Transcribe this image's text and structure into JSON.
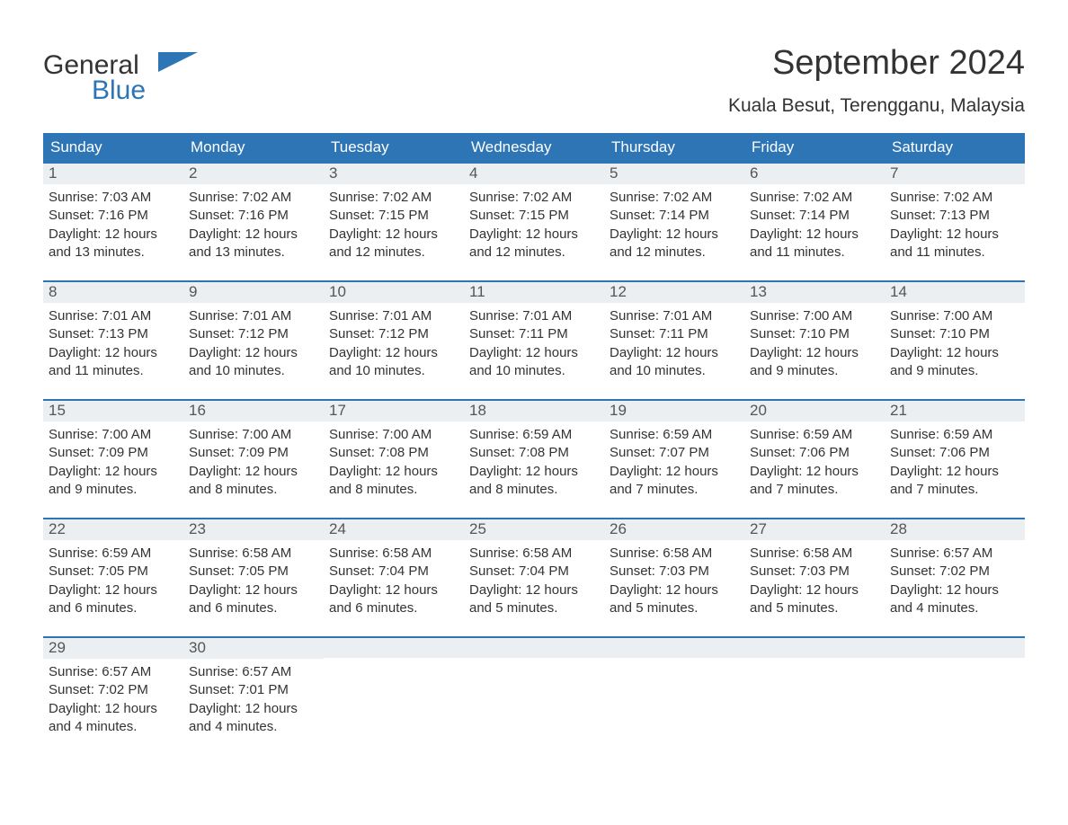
{
  "logo": {
    "top": "General",
    "bottom": "Blue",
    "accent_color": "#2e75b6"
  },
  "header": {
    "month_title": "September 2024",
    "location": "Kuala Besut, Terengganu, Malaysia"
  },
  "colors": {
    "header_bar": "#2e75b6",
    "week_border": "#2e75b6",
    "daynum_bg": "#eceff1",
    "text": "#333333",
    "background": "#ffffff"
  },
  "daysOfWeek": [
    "Sunday",
    "Monday",
    "Tuesday",
    "Wednesday",
    "Thursday",
    "Friday",
    "Saturday"
  ],
  "weeks": [
    [
      {
        "n": "1",
        "sunrise": "Sunrise: 7:03 AM",
        "sunset": "Sunset: 7:16 PM",
        "day1": "Daylight: 12 hours",
        "day2": "and 13 minutes."
      },
      {
        "n": "2",
        "sunrise": "Sunrise: 7:02 AM",
        "sunset": "Sunset: 7:16 PM",
        "day1": "Daylight: 12 hours",
        "day2": "and 13 minutes."
      },
      {
        "n": "3",
        "sunrise": "Sunrise: 7:02 AM",
        "sunset": "Sunset: 7:15 PM",
        "day1": "Daylight: 12 hours",
        "day2": "and 12 minutes."
      },
      {
        "n": "4",
        "sunrise": "Sunrise: 7:02 AM",
        "sunset": "Sunset: 7:15 PM",
        "day1": "Daylight: 12 hours",
        "day2": "and 12 minutes."
      },
      {
        "n": "5",
        "sunrise": "Sunrise: 7:02 AM",
        "sunset": "Sunset: 7:14 PM",
        "day1": "Daylight: 12 hours",
        "day2": "and 12 minutes."
      },
      {
        "n": "6",
        "sunrise": "Sunrise: 7:02 AM",
        "sunset": "Sunset: 7:14 PM",
        "day1": "Daylight: 12 hours",
        "day2": "and 11 minutes."
      },
      {
        "n": "7",
        "sunrise": "Sunrise: 7:02 AM",
        "sunset": "Sunset: 7:13 PM",
        "day1": "Daylight: 12 hours",
        "day2": "and 11 minutes."
      }
    ],
    [
      {
        "n": "8",
        "sunrise": "Sunrise: 7:01 AM",
        "sunset": "Sunset: 7:13 PM",
        "day1": "Daylight: 12 hours",
        "day2": "and 11 minutes."
      },
      {
        "n": "9",
        "sunrise": "Sunrise: 7:01 AM",
        "sunset": "Sunset: 7:12 PM",
        "day1": "Daylight: 12 hours",
        "day2": "and 10 minutes."
      },
      {
        "n": "10",
        "sunrise": "Sunrise: 7:01 AM",
        "sunset": "Sunset: 7:12 PM",
        "day1": "Daylight: 12 hours",
        "day2": "and 10 minutes."
      },
      {
        "n": "11",
        "sunrise": "Sunrise: 7:01 AM",
        "sunset": "Sunset: 7:11 PM",
        "day1": "Daylight: 12 hours",
        "day2": "and 10 minutes."
      },
      {
        "n": "12",
        "sunrise": "Sunrise: 7:01 AM",
        "sunset": "Sunset: 7:11 PM",
        "day1": "Daylight: 12 hours",
        "day2": "and 10 minutes."
      },
      {
        "n": "13",
        "sunrise": "Sunrise: 7:00 AM",
        "sunset": "Sunset: 7:10 PM",
        "day1": "Daylight: 12 hours",
        "day2": "and 9 minutes."
      },
      {
        "n": "14",
        "sunrise": "Sunrise: 7:00 AM",
        "sunset": "Sunset: 7:10 PM",
        "day1": "Daylight: 12 hours",
        "day2": "and 9 minutes."
      }
    ],
    [
      {
        "n": "15",
        "sunrise": "Sunrise: 7:00 AM",
        "sunset": "Sunset: 7:09 PM",
        "day1": "Daylight: 12 hours",
        "day2": "and 9 minutes."
      },
      {
        "n": "16",
        "sunrise": "Sunrise: 7:00 AM",
        "sunset": "Sunset: 7:09 PM",
        "day1": "Daylight: 12 hours",
        "day2": "and 8 minutes."
      },
      {
        "n": "17",
        "sunrise": "Sunrise: 7:00 AM",
        "sunset": "Sunset: 7:08 PM",
        "day1": "Daylight: 12 hours",
        "day2": "and 8 minutes."
      },
      {
        "n": "18",
        "sunrise": "Sunrise: 6:59 AM",
        "sunset": "Sunset: 7:08 PM",
        "day1": "Daylight: 12 hours",
        "day2": "and 8 minutes."
      },
      {
        "n": "19",
        "sunrise": "Sunrise: 6:59 AM",
        "sunset": "Sunset: 7:07 PM",
        "day1": "Daylight: 12 hours",
        "day2": "and 7 minutes."
      },
      {
        "n": "20",
        "sunrise": "Sunrise: 6:59 AM",
        "sunset": "Sunset: 7:06 PM",
        "day1": "Daylight: 12 hours",
        "day2": "and 7 minutes."
      },
      {
        "n": "21",
        "sunrise": "Sunrise: 6:59 AM",
        "sunset": "Sunset: 7:06 PM",
        "day1": "Daylight: 12 hours",
        "day2": "and 7 minutes."
      }
    ],
    [
      {
        "n": "22",
        "sunrise": "Sunrise: 6:59 AM",
        "sunset": "Sunset: 7:05 PM",
        "day1": "Daylight: 12 hours",
        "day2": "and 6 minutes."
      },
      {
        "n": "23",
        "sunrise": "Sunrise: 6:58 AM",
        "sunset": "Sunset: 7:05 PM",
        "day1": "Daylight: 12 hours",
        "day2": "and 6 minutes."
      },
      {
        "n": "24",
        "sunrise": "Sunrise: 6:58 AM",
        "sunset": "Sunset: 7:04 PM",
        "day1": "Daylight: 12 hours",
        "day2": "and 6 minutes."
      },
      {
        "n": "25",
        "sunrise": "Sunrise: 6:58 AM",
        "sunset": "Sunset: 7:04 PM",
        "day1": "Daylight: 12 hours",
        "day2": "and 5 minutes."
      },
      {
        "n": "26",
        "sunrise": "Sunrise: 6:58 AM",
        "sunset": "Sunset: 7:03 PM",
        "day1": "Daylight: 12 hours",
        "day2": "and 5 minutes."
      },
      {
        "n": "27",
        "sunrise": "Sunrise: 6:58 AM",
        "sunset": "Sunset: 7:03 PM",
        "day1": "Daylight: 12 hours",
        "day2": "and 5 minutes."
      },
      {
        "n": "28",
        "sunrise": "Sunrise: 6:57 AM",
        "sunset": "Sunset: 7:02 PM",
        "day1": "Daylight: 12 hours",
        "day2": "and 4 minutes."
      }
    ],
    [
      {
        "n": "29",
        "sunrise": "Sunrise: 6:57 AM",
        "sunset": "Sunset: 7:02 PM",
        "day1": "Daylight: 12 hours",
        "day2": "and 4 minutes."
      },
      {
        "n": "30",
        "sunrise": "Sunrise: 6:57 AM",
        "sunset": "Sunset: 7:01 PM",
        "day1": "Daylight: 12 hours",
        "day2": "and 4 minutes."
      },
      {
        "empty": true
      },
      {
        "empty": true
      },
      {
        "empty": true
      },
      {
        "empty": true
      },
      {
        "empty": true
      }
    ]
  ]
}
